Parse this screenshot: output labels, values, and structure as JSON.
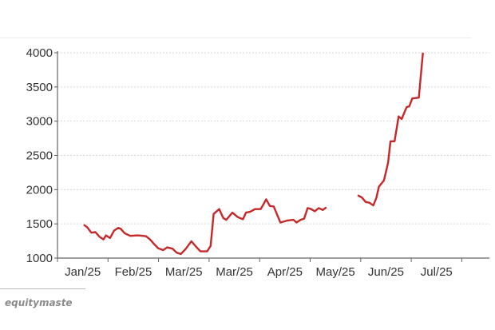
{
  "watermark": "equitymaste",
  "chart_data": {
    "type": "line",
    "title": "",
    "xlabel": "",
    "ylabel": "",
    "ylim": [
      1000,
      4000
    ],
    "yticks": [
      1000,
      1500,
      2000,
      2500,
      3000,
      3500,
      4000
    ],
    "ytick_labels": [
      "1000",
      "1500",
      "2000",
      "2500",
      "3000",
      "3500",
      "4000"
    ],
    "categories": [
      "Jan/25",
      "Feb/25",
      "Mar/25",
      "Mar/25",
      "Apr/25",
      "May/25",
      "Jun/25",
      "Jul/25"
    ],
    "grid": "horizontal dotted",
    "line_color": "#c62828",
    "series": [
      {
        "segments": [
          [
            [
              0.52,
              1488
            ],
            [
              0.59,
              1449
            ],
            [
              0.67,
              1371
            ],
            [
              0.75,
              1379
            ],
            [
              0.83,
              1313
            ],
            [
              0.91,
              1273
            ],
            [
              0.96,
              1332
            ],
            [
              1.04,
              1293
            ],
            [
              1.12,
              1402
            ],
            [
              1.2,
              1441
            ],
            [
              1.25,
              1430
            ],
            [
              1.33,
              1363
            ],
            [
              1.44,
              1324
            ],
            [
              1.59,
              1332
            ],
            [
              1.75,
              1320
            ],
            [
              1.83,
              1273
            ],
            [
              1.91,
              1207
            ],
            [
              1.99,
              1145
            ],
            [
              2.09,
              1117
            ],
            [
              2.17,
              1156
            ],
            [
              2.28,
              1137
            ],
            [
              2.36,
              1078
            ],
            [
              2.44,
              1059
            ],
            [
              2.54,
              1137
            ],
            [
              2.65,
              1246
            ],
            [
              2.73,
              1176
            ],
            [
              2.83,
              1098
            ],
            [
              2.96,
              1098
            ],
            [
              3.03,
              1176
            ],
            [
              3.09,
              1645
            ],
            [
              3.2,
              1715
            ],
            [
              3.28,
              1586
            ],
            [
              3.34,
              1559
            ],
            [
              3.46,
              1664
            ],
            [
              3.57,
              1598
            ],
            [
              3.67,
              1567
            ],
            [
              3.73,
              1664
            ],
            [
              3.81,
              1676
            ],
            [
              3.91,
              1715
            ],
            [
              4.02,
              1715
            ],
            [
              4.08,
              1793
            ],
            [
              4.13,
              1859
            ],
            [
              4.2,
              1762
            ],
            [
              4.28,
              1754
            ],
            [
              4.41,
              1520
            ],
            [
              4.54,
              1547
            ],
            [
              4.67,
              1559
            ],
            [
              4.73,
              1520
            ],
            [
              4.81,
              1559
            ],
            [
              4.88,
              1575
            ],
            [
              4.95,
              1731
            ],
            [
              5.02,
              1715
            ],
            [
              5.09,
              1684
            ],
            [
              5.17,
              1731
            ],
            [
              5.25,
              1703
            ],
            [
              5.32,
              1742
            ]
          ],
          [
            [
              5.94,
              1918
            ],
            [
              6.02,
              1887
            ],
            [
              6.1,
              1820
            ],
            [
              6.17,
              1809
            ],
            [
              6.25,
              1770
            ],
            [
              6.31,
              1879
            ],
            [
              6.36,
              2043
            ],
            [
              6.46,
              2133
            ],
            [
              6.54,
              2387
            ],
            [
              6.59,
              2707
            ],
            [
              6.67,
              2707
            ],
            [
              6.75,
              3070
            ],
            [
              6.81,
              3031
            ],
            [
              6.91,
              3207
            ],
            [
              6.96,
              3215
            ],
            [
              7.02,
              3332
            ],
            [
              7.15,
              3344
            ],
            [
              7.23,
              4000
            ]
          ]
        ]
      }
    ]
  }
}
